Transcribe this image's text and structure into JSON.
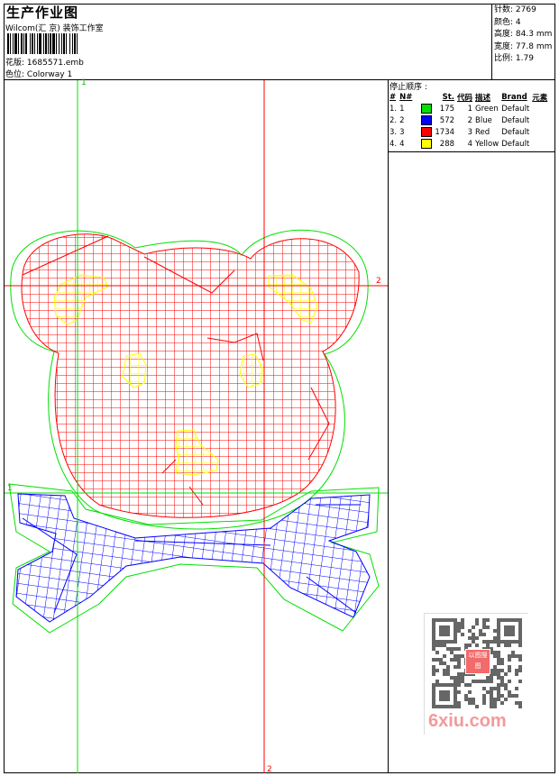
{
  "header": {
    "title": "生产作业图",
    "studio": "Wilcom(汇 京) 装饰工作室",
    "design_file_label": "花版:",
    "design_file": "1685571.emb",
    "colorway_label": "色位:",
    "colorway": "Colorway 1"
  },
  "stats": [
    {
      "label": "针数:",
      "value": "2769"
    },
    {
      "label": "颜色:",
      "value": "4"
    },
    {
      "label": "高度:",
      "value": "84.3 mm"
    },
    {
      "label": "宽度:",
      "value": "77.8 mm"
    },
    {
      "label": "比例:",
      "value": "1.79"
    }
  ],
  "stop_sequence": {
    "title": "停止顺序 :",
    "columns": [
      "#",
      "N#",
      "",
      "St.",
      "代码",
      "描述",
      "Brand",
      "元素"
    ],
    "rows": [
      {
        "idx": "1.",
        "n": "1",
        "color": "#00e000",
        "st": "175",
        "code": "1",
        "desc": "Green",
        "brand": "Default"
      },
      {
        "idx": "2.",
        "n": "2",
        "color": "#0000ff",
        "st": "572",
        "code": "2",
        "desc": "Blue",
        "brand": "Default"
      },
      {
        "idx": "3.",
        "n": "3",
        "color": "#ff0000",
        "st": "1734",
        "code": "3",
        "desc": "Red",
        "brand": "Default"
      },
      {
        "idx": "4.",
        "n": "4",
        "color": "#ffff00",
        "st": "288",
        "code": "4",
        "desc": "Yellow",
        "brand": "Default"
      }
    ]
  },
  "design": {
    "guide_labels": {
      "green_top": "1",
      "green_left": "1",
      "red_right": "2",
      "red_bottom": "2"
    },
    "colors": {
      "green": "#00e000",
      "blue": "#0000ff",
      "red": "#ff0000",
      "yellow": "#ffff00"
    }
  },
  "watermark": {
    "text": "6xiu.com",
    "seal": "以图搜图"
  }
}
